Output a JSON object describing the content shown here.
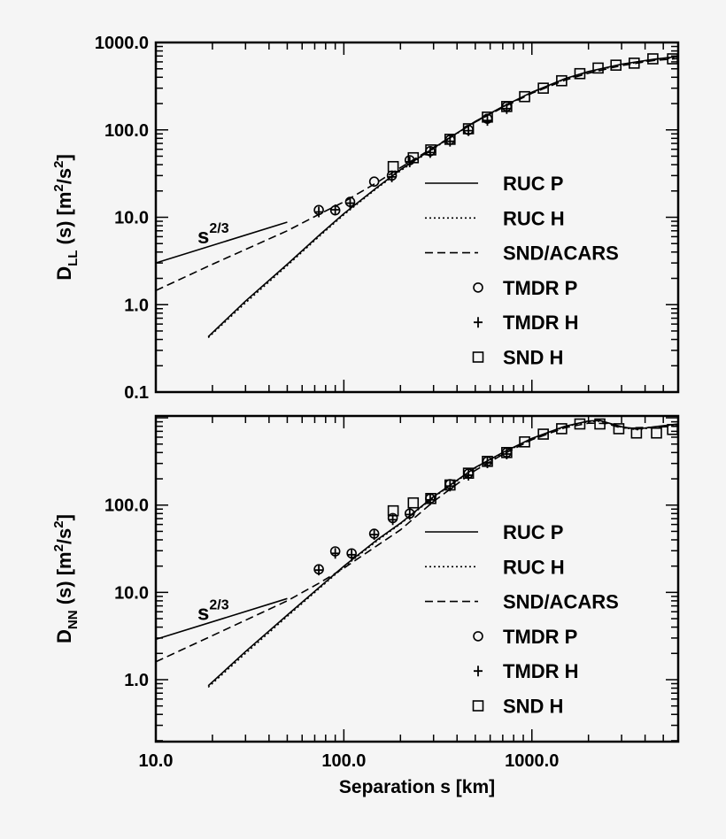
{
  "chart_data": [
    {
      "type": "line",
      "panel": "top",
      "ylabel_parts": [
        "D",
        "LL",
        " (s) [m",
        "2",
        "/s",
        "2",
        "]"
      ],
      "xlim": [
        10,
        6000
      ],
      "ylim": [
        0.1,
        1000
      ],
      "ytick_labels": [
        {
          "v": 0.1,
          "t": "0.1"
        },
        {
          "v": 1,
          "t": "1.0"
        },
        {
          "v": 10,
          "t": "10.0"
        },
        {
          "v": 100,
          "t": "100.0"
        },
        {
          "v": 1000,
          "t": "1000.0"
        }
      ],
      "annotation": {
        "base": "s",
        "exp": "2/3"
      },
      "reference_line": [
        [
          10,
          3.0
        ],
        [
          50,
          8.8
        ]
      ],
      "legend_position": "lower-right",
      "series": [
        {
          "name": "RUC P",
          "style": "solid",
          "points": [
            [
              19,
              0.43
            ],
            [
              30,
              1.1
            ],
            [
              50,
              2.9
            ],
            [
              75,
              6.4
            ],
            [
              100,
              11
            ],
            [
              150,
              22
            ],
            [
              200,
              35
            ],
            [
              300,
              62
            ],
            [
              500,
              125
            ],
            [
              700,
              185
            ],
            [
              1000,
              270
            ],
            [
              1500,
              385
            ],
            [
              2000,
              465
            ],
            [
              3000,
              565
            ],
            [
              4500,
              645
            ],
            [
              6000,
              690
            ]
          ]
        },
        {
          "name": "RUC H",
          "style": "dotted",
          "points": [
            [
              19,
              0.42
            ],
            [
              30,
              1.05
            ],
            [
              50,
              2.8
            ],
            [
              75,
              6.2
            ],
            [
              100,
              10.7
            ],
            [
              150,
              21.5
            ],
            [
              200,
              34
            ],
            [
              300,
              61
            ],
            [
              500,
              124
            ],
            [
              700,
              183
            ],
            [
              1000,
              268
            ],
            [
              1500,
              380
            ],
            [
              2000,
              458
            ],
            [
              3000,
              555
            ],
            [
              4500,
              635
            ],
            [
              6000,
              675
            ]
          ]
        },
        {
          "name": "SND/ACARS",
          "style": "dashed",
          "points": [
            [
              10,
              1.45
            ],
            [
              20,
              2.9
            ],
            [
              50,
              7
            ],
            [
              75,
              11
            ],
            [
              100,
              15
            ],
            [
              150,
              25
            ],
            [
              200,
              37
            ],
            [
              300,
              63
            ],
            [
              500,
              123
            ],
            [
              700,
              180
            ],
            [
              1000,
              262
            ],
            [
              1500,
              370
            ],
            [
              2000,
              445
            ],
            [
              3000,
              545
            ],
            [
              4500,
              625
            ],
            [
              6000,
              655
            ]
          ]
        },
        {
          "name": "TMDR P",
          "style": "circle",
          "points": [
            [
              73.6,
              12.1
            ],
            [
              90,
              12
            ],
            [
              108,
              15
            ],
            [
              145,
              25.6
            ],
            [
              180,
              30
            ],
            [
              224,
              45
            ],
            [
              288,
              57
            ],
            [
              367,
              77
            ],
            [
              460,
              100
            ],
            [
              580,
              134
            ],
            [
              735,
              185
            ]
          ]
        },
        {
          "name": "TMDR H",
          "style": "plus",
          "points": [
            [
              73.6,
              11.5
            ],
            [
              90,
              12.2
            ],
            [
              108,
              14.5
            ],
            [
              180,
              29
            ],
            [
              224,
              43
            ],
            [
              288,
              55
            ],
            [
              367,
              74
            ],
            [
              460,
              98
            ],
            [
              580,
              128
            ],
            [
              735,
              175
            ]
          ]
        },
        {
          "name": "SND H",
          "style": "square",
          "points": [
            [
              183,
              38
            ],
            [
              234,
              48
            ],
            [
              290,
              59
            ],
            [
              367,
              78
            ],
            [
              460,
              103
            ],
            [
              580,
              140
            ],
            [
              735,
              185
            ],
            [
              915,
              240
            ],
            [
              1150,
              300
            ],
            [
              1440,
              365
            ],
            [
              1800,
              440
            ],
            [
              2250,
              510
            ],
            [
              2800,
              550
            ],
            [
              3500,
              580
            ],
            [
              4400,
              650
            ],
            [
              5600,
              650
            ]
          ]
        }
      ]
    },
    {
      "type": "line",
      "panel": "bottom",
      "ylabel_parts": [
        "D",
        "NN",
        " (s) [m",
        "2",
        "/s",
        "2",
        "]"
      ],
      "xlabel": "Separation s [km]",
      "xlim": [
        10,
        6000
      ],
      "ylim": [
        0.195,
        1050
      ],
      "xtick_labels": [
        {
          "v": 10,
          "t": "10.0"
        },
        {
          "v": 100,
          "t": "100.0"
        },
        {
          "v": 1000,
          "t": "1000.0"
        }
      ],
      "ytick_labels": [
        {
          "v": 1,
          "t": "1.0"
        },
        {
          "v": 10,
          "t": "10.0"
        },
        {
          "v": 100,
          "t": "100.0"
        }
      ],
      "annotation": {
        "base": "s",
        "exp": "2/3"
      },
      "reference_line": [
        [
          10,
          2.9
        ],
        [
          50,
          8.5
        ]
      ],
      "legend_position": "lower-right",
      "series": [
        {
          "name": "RUC P",
          "style": "solid",
          "points": [
            [
              19,
              0.85
            ],
            [
              30,
              2.1
            ],
            [
              50,
              5.5
            ],
            [
              100,
              20
            ],
            [
              150,
              40
            ],
            [
              200,
              62
            ],
            [
              300,
              125
            ],
            [
              500,
              270
            ],
            [
              700,
              400
            ],
            [
              1000,
              580
            ],
            [
              1500,
              800
            ],
            [
              2000,
              920
            ],
            [
              2300,
              930
            ],
            [
              3000,
              790
            ],
            [
              3600,
              740
            ],
            [
              4500,
              790
            ],
            [
              6000,
              850
            ]
          ]
        },
        {
          "name": "RUC H",
          "style": "dotted",
          "points": [
            [
              19,
              0.82
            ],
            [
              30,
              2.0
            ],
            [
              50,
              5.3
            ],
            [
              100,
              19.5
            ],
            [
              150,
              39
            ],
            [
              200,
              61
            ],
            [
              300,
              123
            ],
            [
              500,
              265
            ],
            [
              700,
              395
            ],
            [
              1000,
              570
            ],
            [
              1500,
              790
            ],
            [
              2000,
              905
            ],
            [
              2300,
              915
            ],
            [
              3000,
              780
            ],
            [
              3600,
              730
            ],
            [
              4500,
              780
            ],
            [
              6000,
              840
            ]
          ]
        },
        {
          "name": "SND/ACARS",
          "style": "dashed",
          "points": [
            [
              10,
              1.6
            ],
            [
              20,
              3.2
            ],
            [
              50,
              8
            ],
            [
              75,
              13
            ],
            [
              100,
              19
            ],
            [
              200,
              52
            ],
            [
              300,
              110
            ],
            [
              500,
              250
            ],
            [
              700,
              380
            ],
            [
              1000,
              560
            ],
            [
              1500,
              770
            ],
            [
              2000,
              870
            ],
            [
              2500,
              860
            ],
            [
              3000,
              760
            ],
            [
              4500,
              780
            ],
            [
              6000,
              800
            ]
          ]
        },
        {
          "name": "TMDR P",
          "style": "circle",
          "points": [
            [
              73.6,
              18.4
            ],
            [
              90,
              29.5
            ],
            [
              110,
              28
            ],
            [
              145,
              47
            ],
            [
              182,
              71
            ],
            [
              224,
              80
            ],
            [
              288,
              119
            ],
            [
              367,
              174
            ],
            [
              460,
              230
            ],
            [
              580,
              317
            ],
            [
              735,
              400
            ]
          ]
        },
        {
          "name": "TMDR H",
          "style": "plus",
          "points": [
            [
              73.6,
              18
            ],
            [
              90,
              28
            ],
            [
              110,
              27
            ],
            [
              145,
              46
            ],
            [
              182,
              68
            ],
            [
              224,
              78
            ],
            [
              288,
              115
            ],
            [
              367,
              165
            ],
            [
              460,
              220
            ],
            [
              580,
              305
            ],
            [
              735,
              385
            ]
          ]
        },
        {
          "name": "SND H",
          "style": "square",
          "points": [
            [
              183,
              86
            ],
            [
              234,
              106
            ],
            [
              290,
              119
            ],
            [
              367,
              170
            ],
            [
              460,
              232
            ],
            [
              580,
              317
            ],
            [
              735,
              400
            ],
            [
              915,
              530
            ],
            [
              1150,
              650
            ],
            [
              1440,
              750
            ],
            [
              1800,
              850
            ],
            [
              2300,
              850
            ],
            [
              2900,
              750
            ],
            [
              3600,
              670
            ],
            [
              4600,
              670
            ],
            [
              5600,
              735
            ]
          ]
        }
      ]
    }
  ]
}
